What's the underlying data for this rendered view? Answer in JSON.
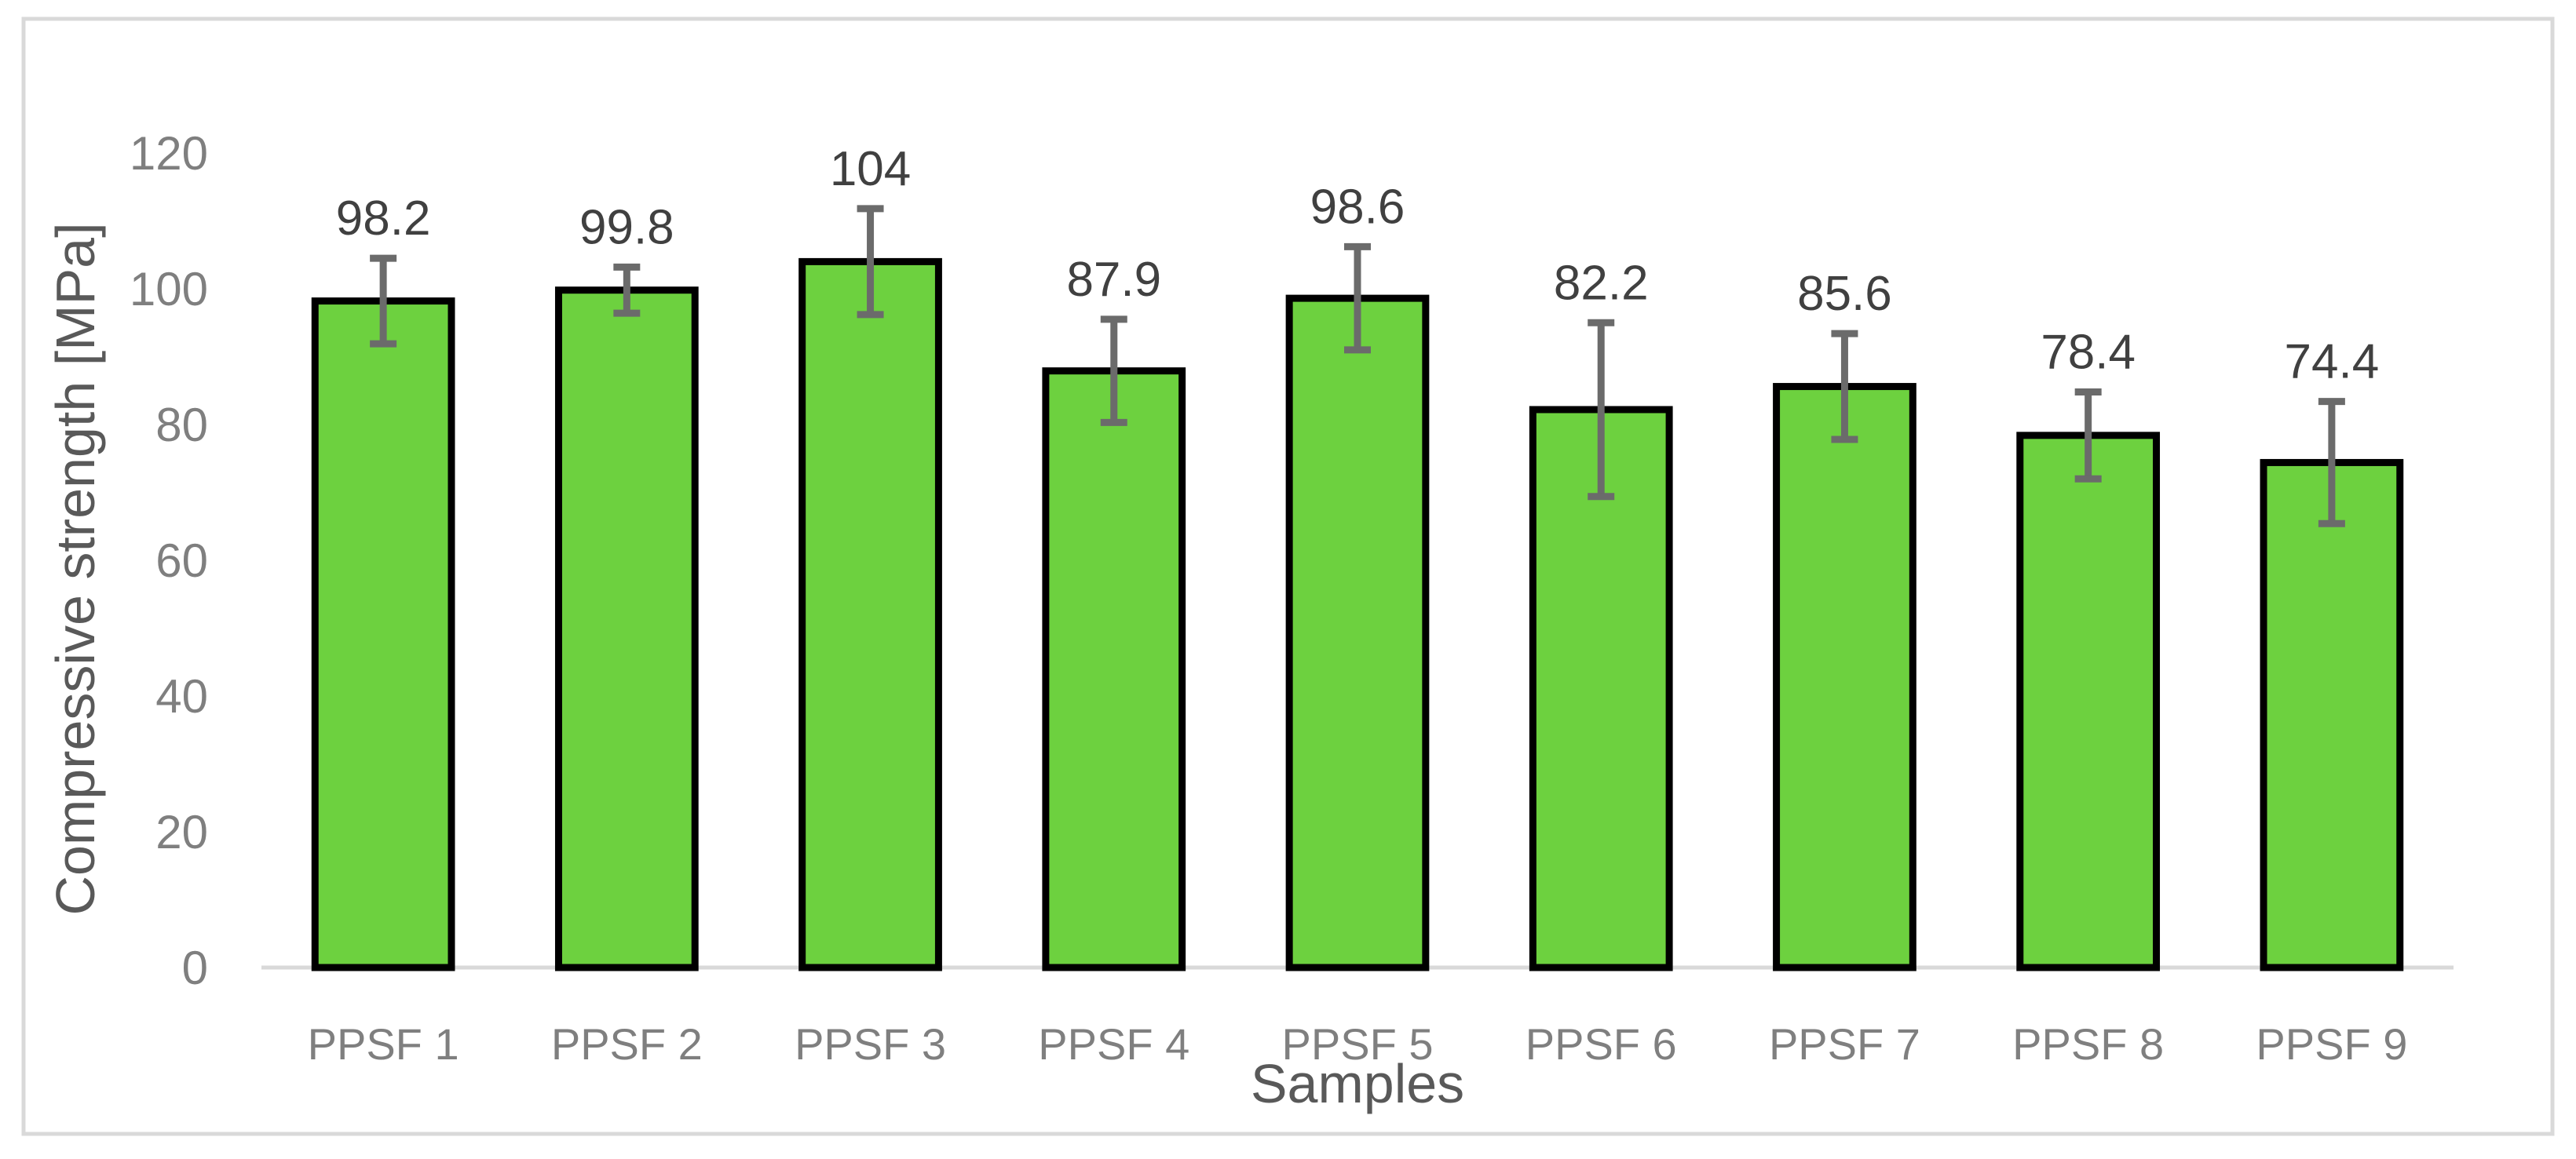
{
  "chart_data": {
    "type": "bar",
    "title": "",
    "xlabel": "Samples",
    "ylabel": "Compressive strength [MPa]",
    "ylim": [
      0,
      120
    ],
    "yticks": [
      0,
      20,
      40,
      60,
      80,
      100,
      120
    ],
    "grid": false,
    "legend": "none",
    "categories": [
      "PPSF 1",
      "PPSF 2",
      "PPSF 3",
      "PPSF 4",
      "PPSF 5",
      "PPSF 6",
      "PPSF 7",
      "PPSF 8",
      "PPSF 9"
    ],
    "values": [
      98.2,
      99.8,
      104,
      87.9,
      98.6,
      82.2,
      85.6,
      78.4,
      74.4
    ],
    "error_bars": [
      6.3,
      3.4,
      7.8,
      7.6,
      7.6,
      12.8,
      7.8,
      6.4,
      9.0
    ],
    "data_labels": [
      "98.2",
      "99.8",
      "104",
      "87.9",
      "98.6",
      "82.2",
      "85.6",
      "78.4",
      "74.4"
    ],
    "colors": {
      "bar_fill": "#6dd13f",
      "bar_edge": "#000000",
      "error_bar": "#6b6b6b",
      "tick_label": "#7f7f7f",
      "data_label": "#404040",
      "axis_title": "#595959"
    }
  }
}
